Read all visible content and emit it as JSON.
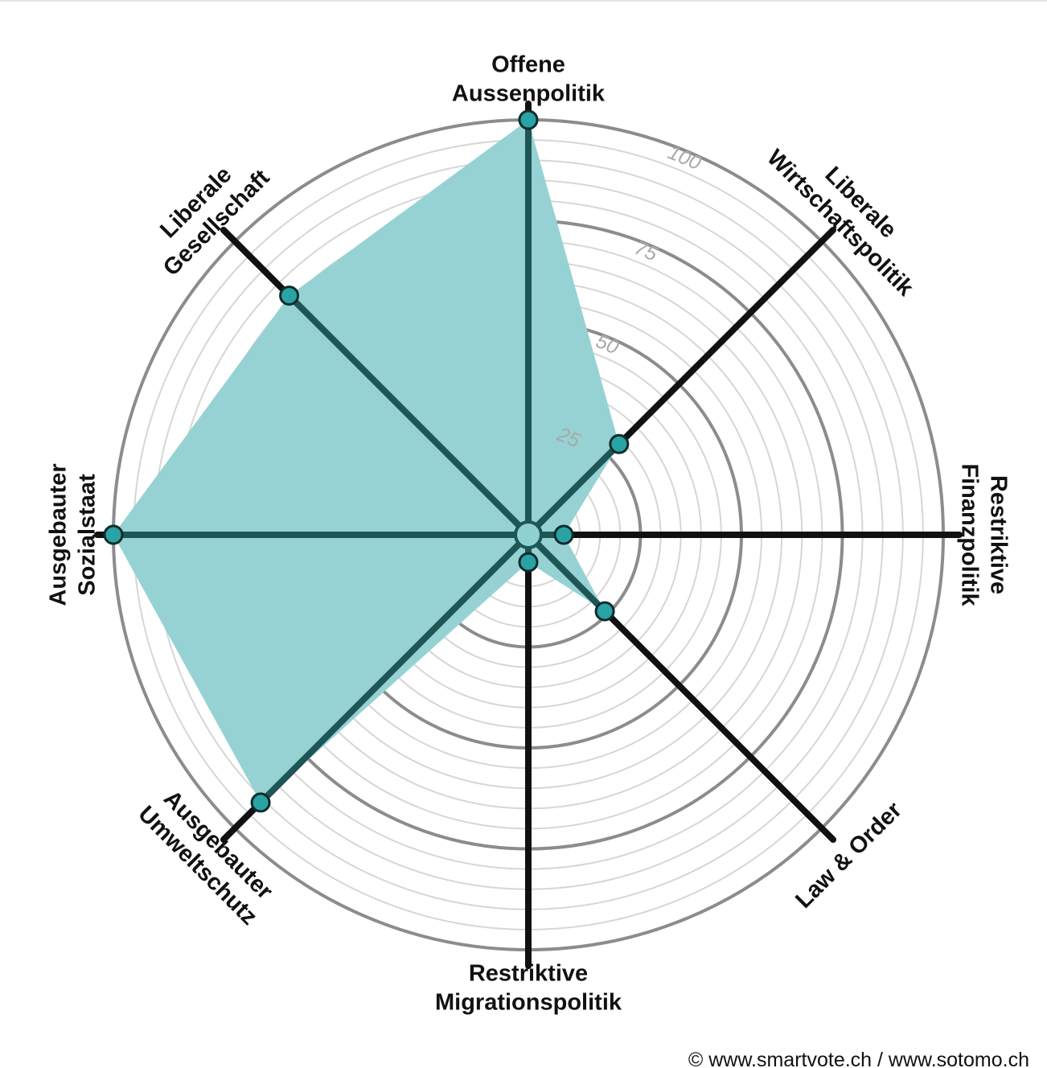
{
  "chart_data": {
    "type": "radar",
    "max": 100,
    "ticks": [
      25,
      50,
      75,
      100
    ],
    "minor_step": 5,
    "axes": [
      {
        "label_lines": [
          "Offene",
          "Aussenpolitik"
        ],
        "value": 100
      },
      {
        "label_lines": [
          "Liberale",
          "Wirtschaftspolitik"
        ],
        "value": 29
      },
      {
        "label_lines": [
          "Restriktive",
          "Finanzpolitik"
        ],
        "value": 6
      },
      {
        "label_lines": [
          "Law & Order"
        ],
        "value": 24
      },
      {
        "label_lines": [
          "Restriktive",
          "Migrationspolitik"
        ],
        "value": 4
      },
      {
        "label_lines": [
          "Ausgebauter",
          "Umweltschutz"
        ],
        "value": 91
      },
      {
        "label_lines": [
          "Ausgebauter",
          "Sozialstaat"
        ],
        "value": 100
      },
      {
        "label_lines": [
          "Liberale",
          "Gesellschaft"
        ],
        "value": 81
      }
    ],
    "series_color": "#2aa3a4",
    "fill_color": "#96d2d3",
    "axis_color": "#111111",
    "covered_axis_color": "#1e5556"
  },
  "footer": {
    "copyright": "© www.smartvote.ch / www.sotomo.ch"
  }
}
